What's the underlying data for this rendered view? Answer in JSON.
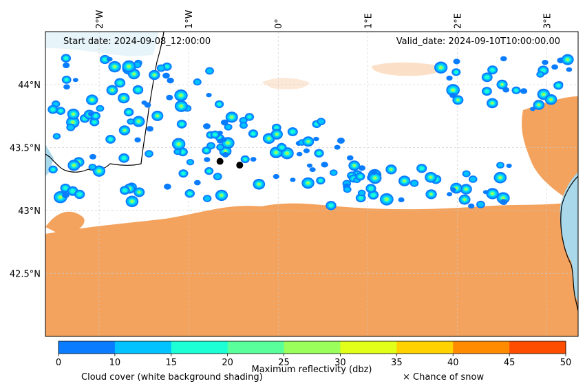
{
  "map": {
    "start_date_label": "Start date: 2024-09-08_12:00:00",
    "valid_date_label": "Valid_date: 2024-09-10T10:00:00.00",
    "lon_ticks": [
      "2°W",
      "1°W",
      "0°",
      "1°E",
      "2°E",
      "3°E"
    ],
    "lat_ticks": [
      "44°N",
      "43.5°N",
      "43°N",
      "42.5°N"
    ],
    "lon_tick_values": [
      -2,
      -1,
      0,
      1,
      2,
      3
    ],
    "lat_tick_values": [
      44,
      43.5,
      43,
      42.5
    ],
    "extent": {
      "lon_min": -2.6,
      "lon_max": 3.35,
      "lat_min": 42.0,
      "lat_max": 44.42
    },
    "colors": {
      "cloud_cover_fill": "#f4a35e",
      "sea_fill": "#a8d8ea",
      "coastline": "#000000",
      "gridline": "#c8c8c8",
      "city_marker": "#000000"
    },
    "city_markers": [
      {
        "lon": -0.65,
        "lat": 43.39
      },
      {
        "lon": -0.43,
        "lat": 43.36
      }
    ]
  },
  "colorbar": {
    "tick_labels": [
      "0",
      "10",
      "15",
      "20",
      "25",
      "30",
      "35",
      "40",
      "45",
      "50"
    ],
    "colors": [
      "#0a7cff",
      "#00c3ff",
      "#1dffd5",
      "#59ff9a",
      "#9aff5a",
      "#e2ff1a",
      "#ffd200",
      "#ff8c00",
      "#ff4d00"
    ],
    "title": "Maximum reflectivity (dbz)",
    "cloud_caption": "Cloud cover (white background shading)",
    "snow_caption": "× Chance of snow"
  }
}
